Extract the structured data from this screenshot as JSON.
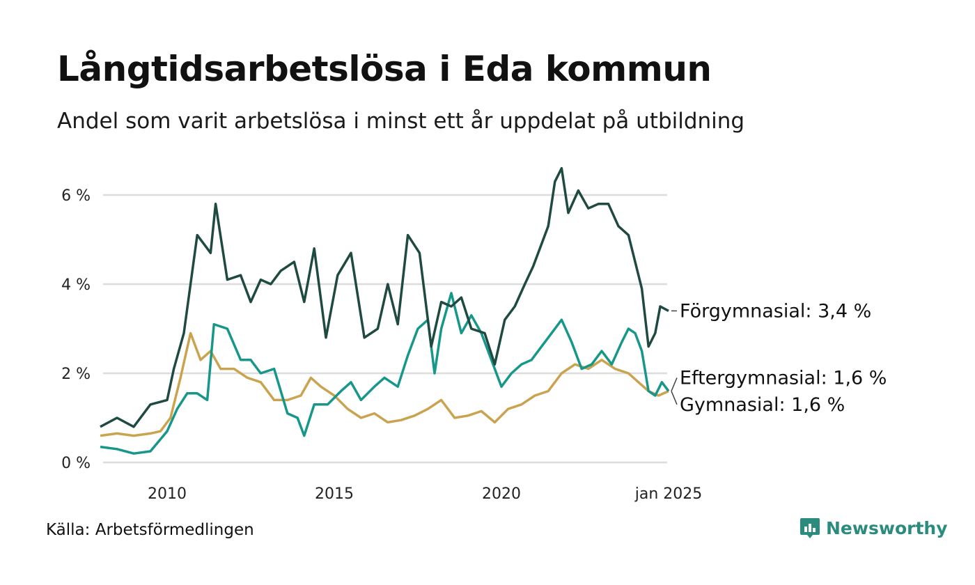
{
  "title": "Långtidsarbetslösa i Eda kommun",
  "subtitle": "Andel som varit arbetslösa i minst ett år uppdelat på utbildning",
  "source": "Källa: Arbetsförmedlingen",
  "brand": "Newsworthy",
  "chart_data": {
    "type": "line",
    "title": "Långtidsarbetslösa i Eda kommun",
    "y_tick_labels": [
      "0 %",
      "2 %",
      "4 %",
      "6 %"
    ],
    "y_ticks": [
      0,
      2,
      4,
      6
    ],
    "ylim": [
      0,
      6.7
    ],
    "x_tick_labels": [
      "2010",
      "2015",
      "2020",
      "jan 2025"
    ],
    "x_ticks": [
      2010.0,
      2015.0,
      2020.0,
      2025.0
    ],
    "xlim": [
      2008.0,
      2025.0
    ],
    "series": [
      {
        "name": "Förgymnasial",
        "end_label": "Förgymnasial: 3,4 %",
        "color": "#1f4a42",
        "x": [
          2008.0,
          2008.5,
          2009.0,
          2009.5,
          2010.0,
          2010.2,
          2010.5,
          2010.9,
          2011.3,
          2011.45,
          2011.8,
          2012.2,
          2012.5,
          2012.8,
          2013.1,
          2013.4,
          2013.8,
          2014.1,
          2014.4,
          2014.75,
          2015.1,
          2015.5,
          2015.9,
          2016.3,
          2016.6,
          2016.9,
          2017.2,
          2017.55,
          2017.9,
          2018.2,
          2018.5,
          2018.8,
          2019.1,
          2019.5,
          2019.8,
          2020.1,
          2020.4,
          2020.7,
          2020.95,
          2021.1,
          2021.4,
          2021.6,
          2021.8,
          2022.0,
          2022.3,
          2022.6,
          2022.9,
          2023.2,
          2023.5,
          2023.8,
          2024.0,
          2024.2,
          2024.4,
          2024.6,
          2024.75,
          2025.0
        ],
        "values": [
          0.8,
          1.0,
          0.8,
          1.3,
          1.4,
          2.1,
          2.9,
          5.1,
          4.7,
          5.8,
          4.1,
          4.2,
          3.6,
          4.1,
          4.0,
          4.3,
          4.5,
          3.6,
          4.8,
          2.8,
          4.2,
          4.7,
          2.8,
          3.0,
          4.0,
          3.1,
          5.1,
          4.7,
          2.6,
          3.6,
          3.5,
          3.7,
          3.0,
          2.9,
          2.2,
          3.2,
          3.5,
          4.0,
          4.4,
          4.7,
          5.3,
          6.3,
          6.6,
          5.6,
          6.1,
          5.7,
          5.8,
          5.8,
          5.3,
          5.1,
          4.5,
          3.9,
          2.6,
          2.9,
          3.5,
          3.4
        ]
      },
      {
        "name": "Eftergymnasial",
        "end_label": "Eftergymnasial: 1,6 %",
        "color": "#16978a",
        "x": [
          2008.0,
          2008.5,
          2009.0,
          2009.5,
          2010.0,
          2010.3,
          2010.6,
          2010.9,
          2011.2,
          2011.4,
          2011.8,
          2012.2,
          2012.5,
          2012.8,
          2013.2,
          2013.6,
          2013.9,
          2014.1,
          2014.4,
          2014.8,
          2015.2,
          2015.5,
          2015.8,
          2016.2,
          2016.5,
          2016.9,
          2017.2,
          2017.5,
          2017.8,
          2018.0,
          2018.2,
          2018.5,
          2018.8,
          2019.1,
          2019.4,
          2019.7,
          2020.0,
          2020.3,
          2020.6,
          2020.9,
          2021.2,
          2021.5,
          2021.8,
          2022.1,
          2022.4,
          2022.7,
          2023.0,
          2023.3,
          2023.6,
          2023.8,
          2024.0,
          2024.2,
          2024.4,
          2024.6,
          2024.8,
          2025.0
        ],
        "values": [
          0.35,
          0.3,
          0.2,
          0.25,
          0.7,
          1.2,
          1.55,
          1.55,
          1.4,
          3.1,
          3.0,
          2.3,
          2.3,
          2.0,
          2.1,
          1.1,
          1.0,
          0.6,
          1.3,
          1.3,
          1.6,
          1.8,
          1.4,
          1.7,
          1.9,
          1.7,
          2.4,
          3.0,
          3.2,
          2.0,
          3.0,
          3.8,
          2.9,
          3.3,
          2.9,
          2.3,
          1.7,
          2.0,
          2.2,
          2.3,
          2.6,
          2.9,
          3.2,
          2.7,
          2.1,
          2.2,
          2.5,
          2.2,
          2.7,
          3.0,
          2.9,
          2.5,
          1.6,
          1.5,
          1.8,
          1.6
        ]
      },
      {
        "name": "Gymnasial",
        "end_label": "Gymnasial: 1,6 %",
        "color": "#c9a34e",
        "x": [
          2008.0,
          2008.5,
          2009.0,
          2009.5,
          2009.8,
          2010.1,
          2010.4,
          2010.7,
          2011.0,
          2011.3,
          2011.6,
          2012.0,
          2012.4,
          2012.8,
          2013.2,
          2013.6,
          2014.0,
          2014.3,
          2014.6,
          2015.0,
          2015.4,
          2015.8,
          2016.2,
          2016.6,
          2017.0,
          2017.4,
          2017.8,
          2018.2,
          2018.6,
          2019.0,
          2019.4,
          2019.8,
          2020.2,
          2020.6,
          2021.0,
          2021.4,
          2021.8,
          2022.2,
          2022.6,
          2023.0,
          2023.4,
          2023.8,
          2024.1,
          2024.4,
          2024.7,
          2025.0
        ],
        "values": [
          0.6,
          0.65,
          0.6,
          0.65,
          0.7,
          1.0,
          1.9,
          2.9,
          2.3,
          2.5,
          2.1,
          2.1,
          1.9,
          1.8,
          1.4,
          1.4,
          1.5,
          1.9,
          1.7,
          1.5,
          1.2,
          1.0,
          1.1,
          0.9,
          0.95,
          1.05,
          1.2,
          1.4,
          1.0,
          1.05,
          1.15,
          0.9,
          1.2,
          1.3,
          1.5,
          1.6,
          2.0,
          2.2,
          2.1,
          2.3,
          2.1,
          2.0,
          1.8,
          1.6,
          1.5,
          1.6
        ]
      }
    ]
  }
}
